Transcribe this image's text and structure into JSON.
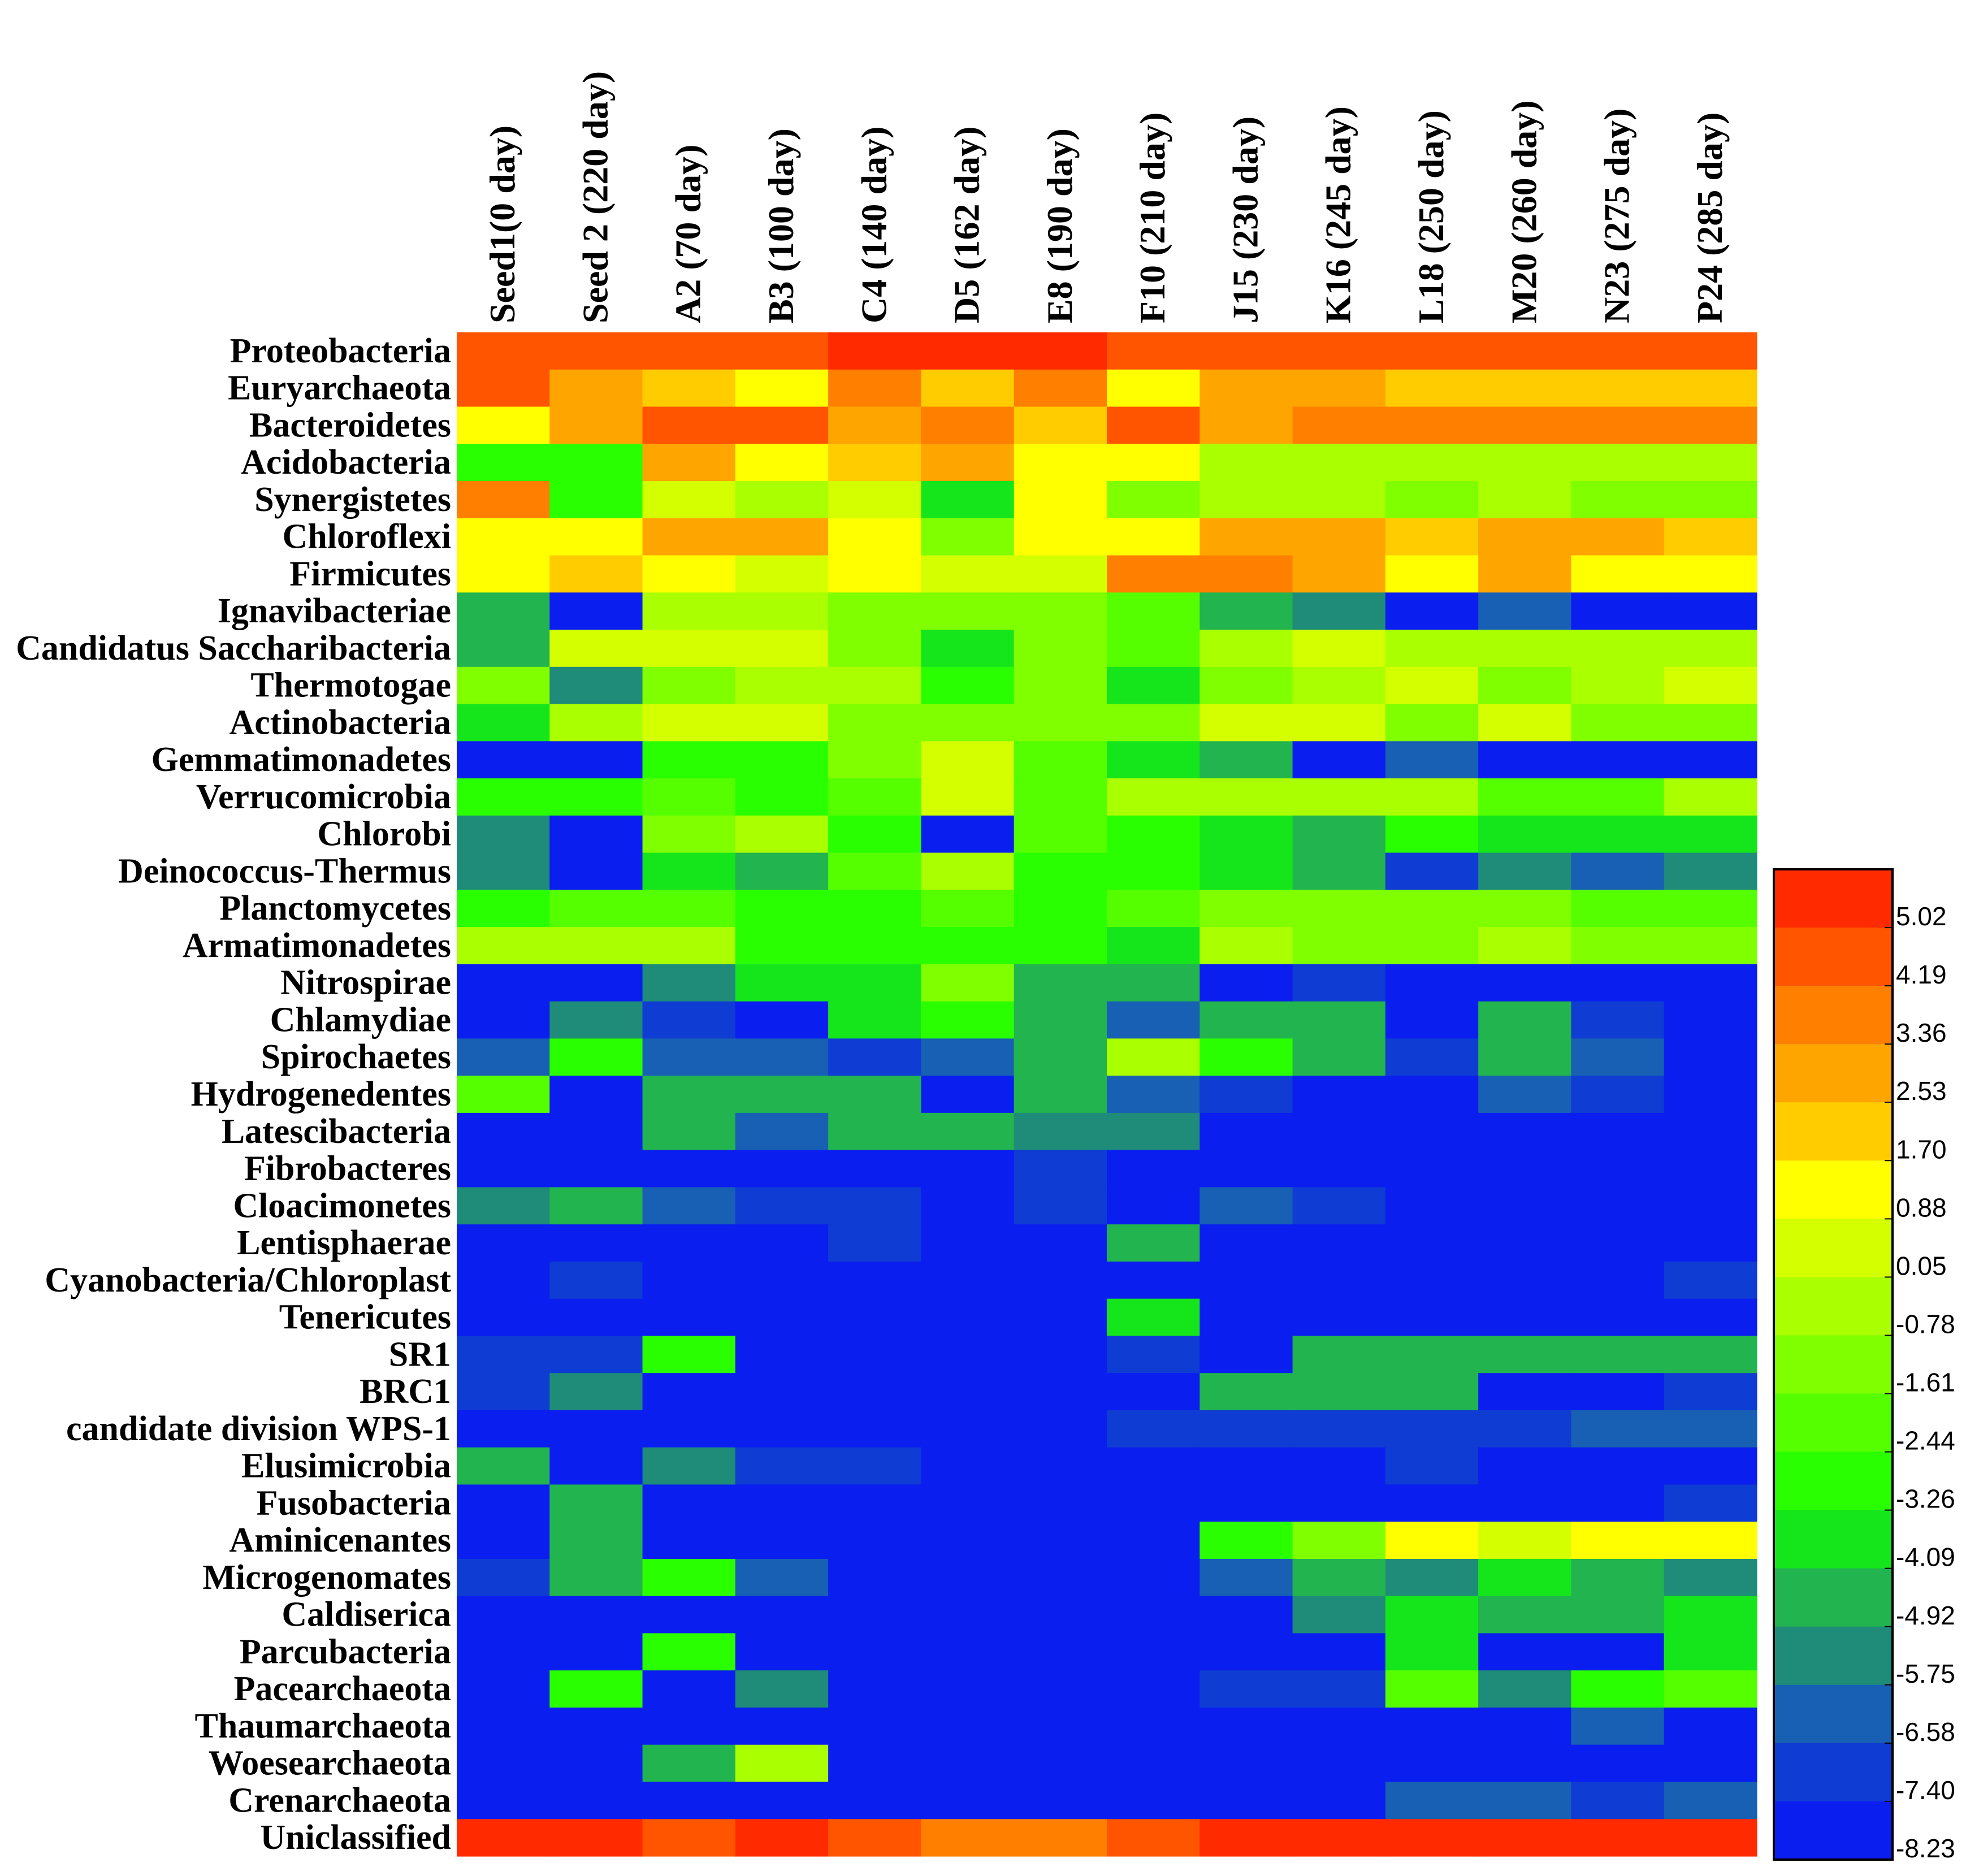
{
  "chart_data": {
    "type": "heatmap",
    "title": "",
    "columns": [
      "Seed1(0 day)",
      "Seed 2 (220 day)",
      "A2 (70 day)",
      "B3 (100 day)",
      "C4 (140 day)",
      "D5 (162 day)",
      "E8 (190 day)",
      "F10 (210 day)",
      "J15 (230 day)",
      "K16 (245 day)",
      "L18 (250 day)",
      "M20 (260 day)",
      "N23 (275  day)",
      "P24 (285 day)"
    ],
    "rows": [
      "Proteobacteria",
      "Euryarchaeota",
      "Bacteroidetes",
      "Acidobacteria",
      "Synergistetes",
      "Chloroflexi",
      "Firmicutes",
      "Ignavibacteriae",
      "Candidatus Saccharibacteria",
      "Thermotogae",
      "Actinobacteria",
      "Gemmatimonadetes",
      "Verrucomicrobia",
      "Chlorobi",
      "Deinococcus-Thermus",
      "Planctomycetes",
      "Armatimonadetes",
      "Nitrospirae",
      "Chlamydiae",
      "Spirochaetes",
      "Hydrogenedentes",
      "Latescibacteria",
      "Fibrobacteres",
      "Cloacimonetes",
      "Lentisphaerae",
      "Cyanobacteria/Chloroplast",
      "Tenericutes",
      "SR1",
      "BRC1",
      "candidate division WPS-1",
      "Elusimicrobia",
      "Fusobacteria",
      "Aminicenantes",
      "Microgenomates",
      "Caldiserica",
      "Parcubacteria",
      "Pacearchaeota",
      "Thaumarchaeota",
      "Woesearchaeota",
      "Crenarchaeota",
      "Uniclassified"
    ],
    "values": [
      [
        4.6,
        4.6,
        4.6,
        4.6,
        5.0,
        5.0,
        5.0,
        4.6,
        4.6,
        4.6,
        4.6,
        4.6,
        4.6,
        4.6
      ],
      [
        4.6,
        2.9,
        1.7,
        0.9,
        3.3,
        1.7,
        3.3,
        0.9,
        2.9,
        2.9,
        1.7,
        1.7,
        1.7,
        1.7
      ],
      [
        0.9,
        2.9,
        4.2,
        4.2,
        2.9,
        3.3,
        1.7,
        4.2,
        2.9,
        3.8,
        3.8,
        3.8,
        3.8,
        3.8
      ],
      [
        -3.3,
        -3.3,
        2.5,
        0.9,
        1.7,
        2.5,
        0.9,
        0.9,
        -0.8,
        -0.8,
        -0.8,
        -0.8,
        -0.8,
        -0.8
      ],
      [
        3.8,
        -2.9,
        0.05,
        -0.8,
        0.05,
        -3.7,
        0.9,
        -1.6,
        -0.8,
        -0.8,
        -1.6,
        -0.8,
        -1.6,
        -1.6
      ],
      [
        0.9,
        0.9,
        2.5,
        2.5,
        0.9,
        -1.6,
        0.9,
        0.9,
        2.5,
        2.5,
        1.7,
        2.5,
        2.5,
        1.7
      ],
      [
        0.9,
        1.7,
        0.9,
        0.05,
        0.9,
        0.05,
        0.05,
        3.8,
        3.8,
        2.5,
        0.9,
        2.5,
        0.9,
        0.9
      ],
      [
        -4.5,
        -7.8,
        -0.8,
        -0.8,
        -1.6,
        -1.6,
        -1.6,
        -2.4,
        -4.5,
        -5.3,
        -7.8,
        -6.6,
        -8.2,
        -8.2
      ],
      [
        -4.5,
        0.05,
        0.05,
        0.05,
        -1.6,
        -3.7,
        -1.6,
        -2.4,
        -0.8,
        0.05,
        -0.8,
        -0.8,
        -0.8,
        -0.8
      ],
      [
        -1.6,
        -5.3,
        -1.6,
        -0.8,
        -0.8,
        -3.3,
        -1.6,
        -3.7,
        -1.6,
        -0.8,
        0.05,
        -1.6,
        -0.8,
        0.05
      ],
      [
        -3.7,
        -0.8,
        0.05,
        0.05,
        -1.6,
        -1.6,
        -1.6,
        -1.6,
        0.05,
        0.05,
        -1.6,
        0.05,
        -1.6,
        -1.6
      ],
      [
        -7.8,
        -8.2,
        -2.9,
        -3.3,
        -1.6,
        0.05,
        -2.4,
        -3.7,
        -4.5,
        -8.2,
        -6.6,
        -8.2,
        -8.2,
        -8.2
      ],
      [
        -2.9,
        -2.9,
        -2.4,
        -3.3,
        -2.4,
        0.05,
        -2.4,
        -0.8,
        -0.8,
        -0.8,
        -0.8,
        -2.4,
        -2.4,
        -0.8
      ],
      [
        -5.3,
        -8.2,
        -1.6,
        -0.8,
        -3.3,
        -7.8,
        -2.4,
        -2.9,
        -3.7,
        -4.5,
        -2.9,
        -3.7,
        -3.7,
        -3.7
      ],
      [
        -5.3,
        -7.8,
        -3.7,
        -4.5,
        -2.4,
        -0.8,
        -2.9,
        -2.9,
        -3.7,
        -4.5,
        -7.0,
        -5.3,
        -6.6,
        -5.3
      ],
      [
        -3.3,
        -2.4,
        -2.4,
        -2.9,
        -2.9,
        -2.4,
        -2.9,
        -2.4,
        -1.6,
        -1.6,
        -1.6,
        -1.6,
        -2.4,
        -2.4
      ],
      [
        -0.8,
        -0.8,
        -0.8,
        -2.9,
        -2.9,
        -2.9,
        -2.9,
        -3.7,
        -0.8,
        -1.6,
        -1.6,
        -0.8,
        -1.6,
        -1.6
      ],
      [
        -8.2,
        -8.2,
        -5.3,
        -3.7,
        -3.7,
        -1.6,
        -4.5,
        -4.5,
        -8.2,
        -7.4,
        -8.2,
        -8.2,
        -8.2,
        -8.2
      ],
      [
        -8.2,
        -5.3,
        -7.4,
        -8.2,
        -3.7,
        -2.9,
        -4.5,
        -6.6,
        -4.5,
        -4.9,
        -8.2,
        -4.9,
        -7.4,
        -8.2
      ],
      [
        -6.6,
        -3.3,
        -6.6,
        -6.6,
        -7.4,
        -6.6,
        -4.5,
        -0.8,
        -2.9,
        -4.9,
        -7.4,
        -4.9,
        -6.6,
        -8.2
      ],
      [
        -2.4,
        -8.2,
        -4.5,
        -4.5,
        -4.5,
        -8.2,
        -4.5,
        -6.6,
        -7.4,
        -8.2,
        -8.2,
        -6.6,
        -7.4,
        -8.2
      ],
      [
        -8.2,
        -8.2,
        -4.5,
        -6.6,
        -4.5,
        -4.5,
        -5.3,
        -5.3,
        -8.2,
        -8.2,
        -8.2,
        -8.2,
        -8.2,
        -8.2
      ],
      [
        -8.2,
        -8.2,
        -8.2,
        -8.2,
        -8.2,
        -8.2,
        -7.4,
        -8.2,
        -8.2,
        -8.2,
        -8.2,
        -8.2,
        -8.2,
        -8.2
      ],
      [
        -5.3,
        -4.5,
        -6.6,
        -7.4,
        -7.0,
        -8.2,
        -7.4,
        -8.2,
        -6.6,
        -7.4,
        -8.2,
        -8.2,
        -8.2,
        -8.2
      ],
      [
        -8.2,
        -8.2,
        -8.2,
        -8.2,
        -7.4,
        -8.2,
        -8.2,
        -4.5,
        -8.2,
        -8.2,
        -8.2,
        -8.2,
        -8.2,
        -8.2
      ],
      [
        -8.2,
        -7.4,
        -8.2,
        -8.2,
        -8.2,
        -8.2,
        -8.2,
        -8.2,
        -8.2,
        -8.2,
        -8.2,
        -8.2,
        -8.2,
        -7.4
      ],
      [
        -8.2,
        -8.2,
        -8.2,
        -8.2,
        -8.2,
        -8.2,
        -8.2,
        -3.7,
        -8.2,
        -8.2,
        -8.2,
        -8.2,
        -8.2,
        -8.2
      ],
      [
        -7.4,
        -7.4,
        -2.9,
        -8.2,
        -8.2,
        -8.2,
        -8.2,
        -7.4,
        -8.2,
        -4.5,
        -4.9,
        -4.9,
        -4.5,
        -4.5
      ],
      [
        -7.4,
        -5.3,
        -8.2,
        -8.2,
        -8.2,
        -8.2,
        -8.2,
        -8.2,
        -4.5,
        -4.9,
        -4.9,
        -7.8,
        -8.2,
        -7.4
      ],
      [
        -8.2,
        -8.2,
        -8.2,
        -8.2,
        -8.2,
        -8.2,
        -8.2,
        -7.4,
        -7.4,
        -7.4,
        -7.4,
        -7.4,
        -6.6,
        -6.6
      ],
      [
        -4.5,
        -8.2,
        -5.3,
        -7.4,
        -7.4,
        -8.2,
        -8.2,
        -8.2,
        -8.2,
        -8.2,
        -7.4,
        -8.2,
        -8.2,
        -8.2
      ],
      [
        -8.2,
        -4.5,
        -8.2,
        -8.2,
        -8.2,
        -8.2,
        -8.2,
        -8.2,
        -8.2,
        -8.2,
        -8.2,
        -8.2,
        -8.2,
        -7.4
      ],
      [
        -8.2,
        -4.5,
        -8.2,
        -8.2,
        -8.2,
        -8.2,
        -8.2,
        -8.2,
        -3.3,
        -1.6,
        0.9,
        0.05,
        0.9,
        0.9
      ],
      [
        -7.4,
        -4.5,
        -3.3,
        -6.6,
        -8.2,
        -8.2,
        -8.2,
        -8.2,
        -6.6,
        -4.5,
        -5.3,
        -3.7,
        -4.5,
        -5.3
      ],
      [
        -8.2,
        -8.2,
        -8.2,
        -8.2,
        -8.2,
        -8.2,
        -8.2,
        -8.2,
        -8.2,
        -5.3,
        -3.7,
        -4.5,
        -4.5,
        -3.7
      ],
      [
        -8.2,
        -8.2,
        -3.3,
        -8.2,
        -8.2,
        -8.2,
        -8.2,
        -8.2,
        -8.2,
        -8.2,
        -3.7,
        -8.2,
        -8.2,
        -3.7
      ],
      [
        -8.2,
        -3.3,
        -8.2,
        -5.3,
        -8.2,
        -8.2,
        -8.2,
        -8.2,
        -7.4,
        -7.4,
        -2.4,
        -5.3,
        -3.3,
        -2.4
      ],
      [
        -8.2,
        -8.2,
        -8.2,
        -8.2,
        -8.2,
        -8.2,
        -8.2,
        -8.2,
        -8.2,
        -8.2,
        -8.2,
        -8.2,
        -6.6,
        -8.2
      ],
      [
        -8.2,
        -8.2,
        -4.5,
        -0.8,
        -8.2,
        -8.2,
        -8.2,
        -8.2,
        -8.2,
        -8.2,
        -8.2,
        -8.2,
        -8.2,
        -8.2
      ],
      [
        -8.2,
        -8.2,
        -8.2,
        -8.2,
        -8.2,
        -8.2,
        -8.2,
        -8.2,
        -8.2,
        -8.2,
        -6.6,
        -6.6,
        -7.0,
        -6.6
      ],
      [
        5.0,
        5.0,
        4.6,
        5.0,
        4.2,
        3.8,
        3.8,
        4.2,
        5.0,
        5.0,
        5.0,
        5.0,
        5.0,
        5.0
      ]
    ],
    "colorbar": {
      "tick_labels": [
        "5.02",
        "4.19",
        "3.36",
        "2.53",
        "1.70",
        "0.88",
        "0.05",
        "-0.78",
        "-1.61",
        "-2.44",
        "-3.26",
        "-4.09",
        "-4.92",
        "-5.75",
        "-6.58",
        "-7.40",
        "-8.23"
      ],
      "vmin": -8.23,
      "vmax": 5.44,
      "colors": [
        "#ff2a00",
        "#ff5500",
        "#ff7f00",
        "#ffa500",
        "#ffcc00",
        "#ffff00",
        "#d4ff00",
        "#aaff00",
        "#7fff00",
        "#55ff00",
        "#2aff00",
        "#15e61c",
        "#22b44e",
        "#1e8c78",
        "#1760b4",
        "#0f3cd2",
        "#0a1ef0"
      ]
    },
    "xlabel": "",
    "ylabel": "",
    "legend": "colorbar right"
  }
}
